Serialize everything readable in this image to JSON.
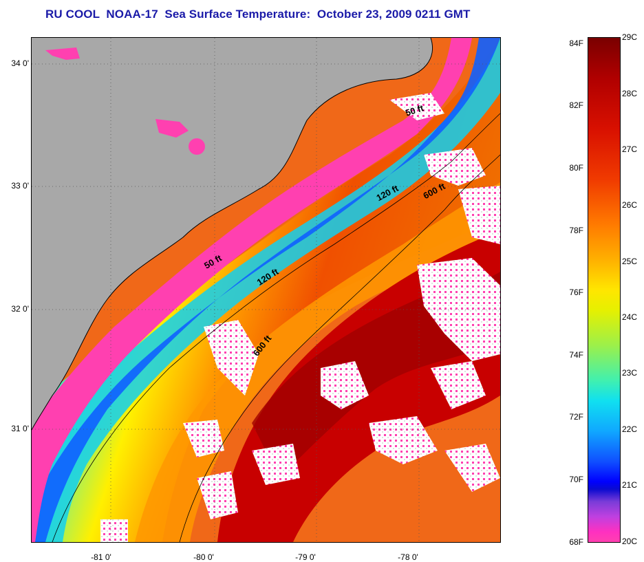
{
  "title": "RU COOL  NOAA-17  Sea Surface Temperature:  October 23, 2009 0211 GMT",
  "map": {
    "lat_labels": [
      "34 0'",
      "33 0'",
      "32 0'",
      "31 0'"
    ],
    "lon_labels": [
      "-81 0'",
      "-80 0'",
      "-79 0'",
      "-78 0'"
    ],
    "contour_labels": [
      "50 ft",
      "120 ft",
      "600 ft",
      "50 ft",
      "120 ft",
      "600 ft"
    ],
    "colors": {
      "land": "#a8a8a8",
      "cloud": "#ffffff",
      "cold": "#ff40b0",
      "warm": "#c00000"
    }
  },
  "colorbar": {
    "fahrenheit": [
      "84F",
      "82F",
      "80F",
      "78F",
      "76F",
      "74F",
      "72F",
      "70F",
      "68F"
    ],
    "celsius": [
      "29C",
      "28C",
      "27C",
      "26C",
      "25C",
      "24C",
      "23C",
      "22C",
      "21C",
      "20C"
    ]
  }
}
